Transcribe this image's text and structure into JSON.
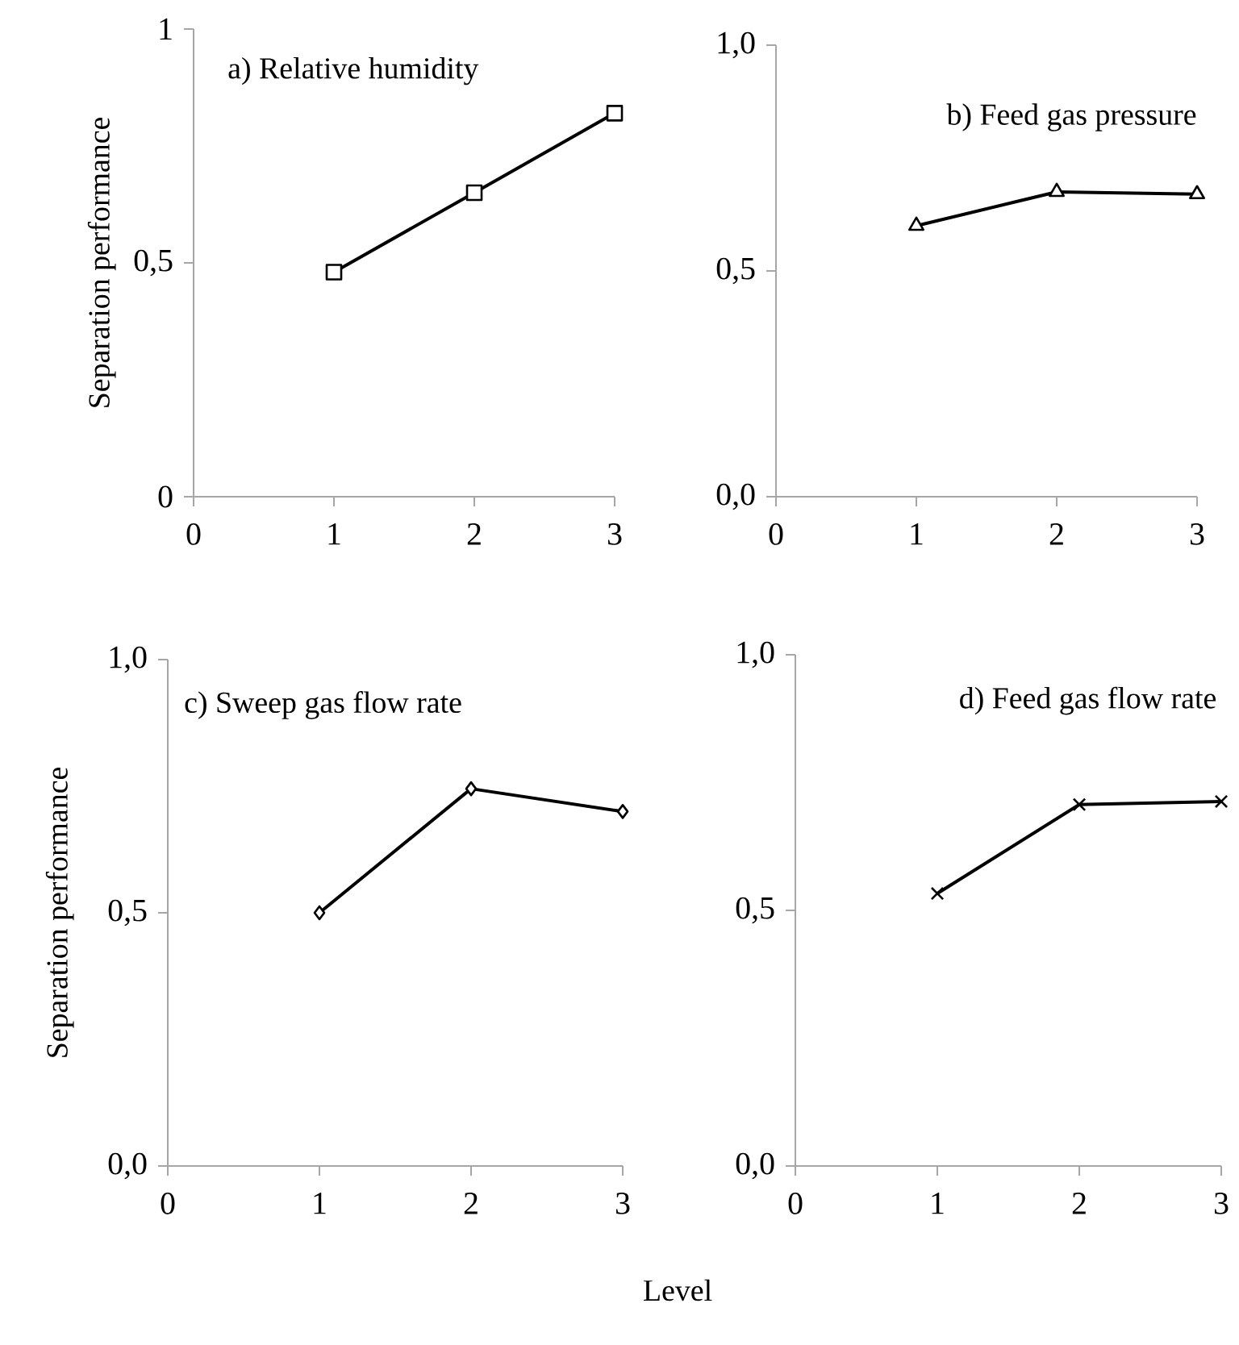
{
  "chart_data": [
    {
      "type": "line",
      "title": "a) Relative humidity",
      "ylabel": "Separation performance",
      "x": [
        1,
        2,
        3
      ],
      "values": [
        0.48,
        0.65,
        0.82
      ],
      "color": "#000000",
      "marker": "square",
      "xlim": [
        0,
        3
      ],
      "xticks": [
        0,
        1,
        2,
        3
      ],
      "ylim": [
        0,
        1
      ],
      "yticks": [
        0,
        {
          "value": 0.5,
          "label": "0,5"
        },
        1
      ]
    },
    {
      "type": "line",
      "title": "b) Feed gas pressure",
      "x": [
        1,
        2,
        3
      ],
      "values": [
        0.6,
        0.675,
        0.67
      ],
      "color": "#000000",
      "marker": "triangle",
      "xlim": [
        0,
        3
      ],
      "xticks": [
        0,
        1,
        2,
        3
      ],
      "ylim": [
        0,
        1
      ],
      "yticks": [
        {
          "value": 0,
          "label": "0,0"
        },
        {
          "value": 0.5,
          "label": "0,5"
        },
        {
          "value": 1,
          "label": "1,0"
        }
      ]
    },
    {
      "type": "line",
      "title": "c) Sweep gas flow rate",
      "ylabel": "Separation performance",
      "xlabel": "Level",
      "x": [
        1,
        2,
        3
      ],
      "values": [
        0.5,
        0.745,
        0.7
      ],
      "color": "#000000",
      "marker": "diamond",
      "xlim": [
        0,
        3
      ],
      "xticks": [
        0,
        1,
        2,
        3
      ],
      "ylim": [
        0,
        1
      ],
      "yticks": [
        {
          "value": 0,
          "label": "0,0"
        },
        {
          "value": 0.5,
          "label": "0,5"
        },
        {
          "value": 1,
          "label": "1,0"
        }
      ]
    },
    {
      "type": "line",
      "title": "d) Feed gas flow rate",
      "x": [
        1,
        2,
        3
      ],
      "values": [
        0.533,
        0.707,
        0.713
      ],
      "color": "#000000",
      "marker": "cross",
      "xlim": [
        0,
        3
      ],
      "xticks": [
        0,
        1,
        2,
        3
      ],
      "ylim": [
        0,
        1
      ],
      "yticks": [
        {
          "value": 0,
          "label": "0,0"
        },
        {
          "value": 0.5,
          "label": "0,5"
        },
        {
          "value": 1,
          "label": "1,0"
        }
      ]
    }
  ]
}
